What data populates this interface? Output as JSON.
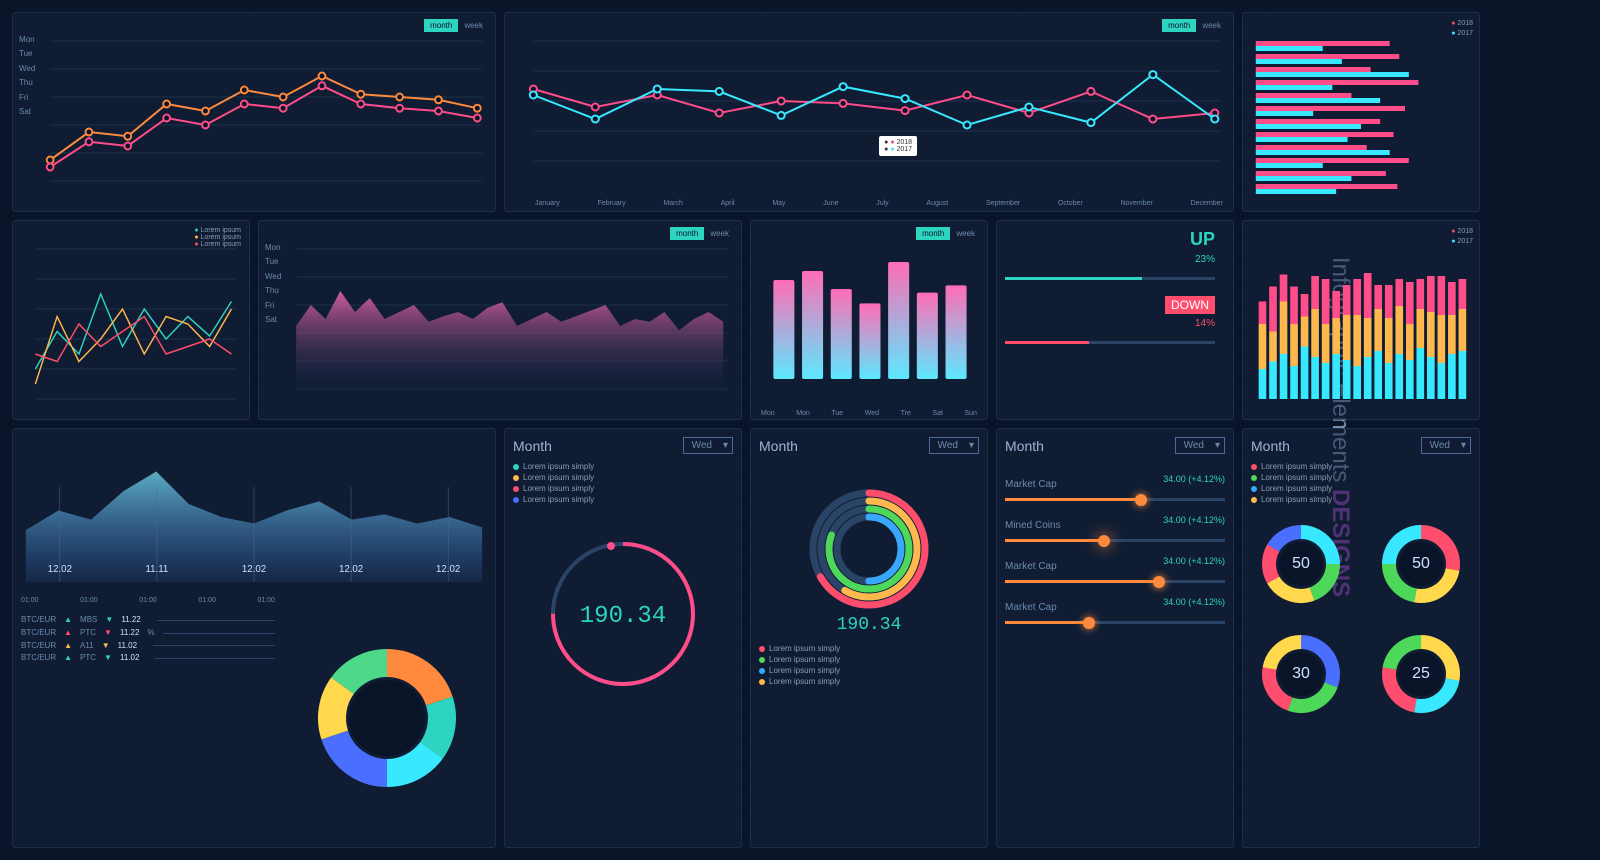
{
  "sidebar": {
    "title1": "Infographic Elements ",
    "title2": "DESIGNS"
  },
  "toggle": {
    "active": "month",
    "inactive": "week"
  },
  "days": [
    "Mon",
    "Tue",
    "Wed",
    "Thu",
    "Fri",
    "Sat"
  ],
  "days_short": [
    "Mon",
    "Tue",
    "Wed",
    "Tre",
    "Sat",
    "Sun"
  ],
  "months_full": [
    "January",
    "February",
    "March",
    "April",
    "May",
    "June",
    "July",
    "August",
    "September",
    "October",
    "November",
    "December"
  ],
  "chart1": {
    "series_a": {
      "color": "#ff8a3d",
      "points": [
        15,
        35,
        32,
        55,
        50,
        65,
        60,
        75,
        62,
        60,
        58,
        52
      ]
    },
    "series_b": {
      "color": "#ff4d8a",
      "points": [
        10,
        28,
        25,
        45,
        40,
        55,
        52,
        68,
        55,
        52,
        50,
        45
      ]
    }
  },
  "chart2": {
    "series_a": {
      "color": "#ff4d8a",
      "points": [
        60,
        45,
        55,
        40,
        50,
        48,
        42,
        55,
        40,
        58,
        35,
        40
      ]
    },
    "series_b": {
      "color": "#38e8ff",
      "points": [
        55,
        35,
        60,
        58,
        38,
        62,
        52,
        30,
        45,
        32,
        72,
        35
      ]
    },
    "legend": {
      "2018": "#ff4d6d",
      "2017": "#38e8ff"
    }
  },
  "chart3_bars": {
    "legend": {
      "2018": "#ff4d6d",
      "2017": "#38e8ff"
    },
    "data": [
      [
        70,
        35
      ],
      [
        75,
        45
      ],
      [
        60,
        80
      ],
      [
        85,
        40
      ],
      [
        50,
        65
      ],
      [
        78,
        30
      ],
      [
        65,
        55
      ],
      [
        72,
        48
      ],
      [
        58,
        70
      ],
      [
        80,
        35
      ],
      [
        68,
        50
      ],
      [
        74,
        42
      ]
    ],
    "colors": [
      "#ff4d8a",
      "#38e8ff"
    ]
  },
  "chart4_multi": {
    "legend": [
      {
        "c": "#2dd4bf",
        "t": "Lorem ipsum"
      },
      {
        "c": "#ffb84d",
        "t": "Lorem ipsum"
      },
      {
        "c": "#ff4d6d",
        "t": "Lorem ipsum"
      }
    ],
    "lines": [
      {
        "c": "#2dd4bf",
        "p": [
          20,
          45,
          30,
          70,
          35,
          60,
          40,
          55,
          42,
          65
        ]
      },
      {
        "c": "#ffb84d",
        "p": [
          10,
          55,
          25,
          40,
          60,
          30,
          55,
          50,
          35,
          60
        ]
      },
      {
        "c": "#ff4d6d",
        "p": [
          30,
          25,
          50,
          35,
          45,
          55,
          30,
          35,
          40,
          30
        ]
      }
    ]
  },
  "chart5_area": {
    "color_top": "#ff6db5",
    "color_bot": "#142848",
    "points": [
      45,
      60,
      50,
      70,
      55,
      65,
      50,
      55,
      60,
      48,
      52,
      55,
      50,
      58,
      62,
      45,
      50,
      55,
      48,
      52,
      56,
      60,
      45,
      50,
      48,
      55,
      42,
      50,
      55,
      48
    ],
    "legend": {
      "2018": "#ff4d6d",
      "2017": "#38e8ff"
    }
  },
  "chart6_bars": {
    "days": [
      "Mon",
      "Mon",
      "Tue",
      "Wed",
      "Tre",
      "Sat",
      "Sun"
    ],
    "values": [
      55,
      60,
      50,
      42,
      65,
      48,
      52
    ],
    "color_top": "#ff6db5",
    "color_bot": "#5de8ff"
  },
  "updown": {
    "up_label": "UP",
    "up_pct": "23%",
    "up_color": "#2dd4bf",
    "down_label": "DOWN",
    "down_pct": "14%",
    "down_color": "#ff4d6d"
  },
  "chart7_stacked": {
    "legend": {
      "2018": "#ff4d6d",
      "2017": "#38e8ff"
    },
    "bars": [
      [
        20,
        30,
        15
      ],
      [
        25,
        20,
        30
      ],
      [
        30,
        35,
        18
      ],
      [
        22,
        28,
        25
      ],
      [
        35,
        20,
        15
      ],
      [
        28,
        32,
        22
      ],
      [
        24,
        26,
        30
      ],
      [
        30,
        24,
        18
      ],
      [
        26,
        30,
        20
      ],
      [
        22,
        34,
        24
      ],
      [
        28,
        26,
        30
      ],
      [
        32,
        28,
        16
      ],
      [
        24,
        30,
        22
      ],
      [
        30,
        32,
        18
      ],
      [
        26,
        24,
        28
      ],
      [
        34,
        26,
        20
      ],
      [
        28,
        30,
        24
      ],
      [
        24,
        32,
        26
      ],
      [
        30,
        26,
        22
      ],
      [
        32,
        28,
        20
      ]
    ],
    "colors": [
      "#38e8ff",
      "#ffb84d",
      "#ff4d8a"
    ]
  },
  "chart8_wave": {
    "colors": [
      "#7de8ff",
      "#4a8fff"
    ],
    "points": [
      40,
      55,
      48,
      70,
      85,
      60,
      50,
      45,
      55,
      62,
      48,
      52,
      45,
      50,
      42
    ],
    "labels": [
      "12.02",
      "11.11",
      "12.02",
      "12.02",
      "12.02"
    ]
  },
  "chart8b_times": [
    "01:00",
    "01:00",
    "01:00",
    "01:00",
    "01:00"
  ],
  "ticker_table": [
    {
      "s": "MBS",
      "v": "11.22",
      "c": "#2dd4bf"
    },
    {
      "s": "PTC",
      "v": "11.22",
      "pct": "%",
      "c": "#ff4d6d"
    },
    {
      "s": "A11",
      "v": "11.02",
      "c": "#ffb84d"
    },
    {
      "s": "PTC",
      "v": "11.02",
      "c": "#2dd4bf"
    }
  ],
  "donut_multi": {
    "segments": [
      {
        "c": "#ff8a3d",
        "v": 20
      },
      {
        "c": "#2dd4bf",
        "v": 15
      },
      {
        "c": "#38e8ff",
        "v": 15
      },
      {
        "c": "#4a6fff",
        "v": 20
      },
      {
        "c": "#ffd84d",
        "v": 15
      },
      {
        "c": "#4dd88a",
        "v": 15
      }
    ]
  },
  "panel_month1": {
    "title": "Month",
    "sel": "Wed",
    "leg": [
      {
        "c": "#2dd4bf",
        "t": "Lorem ipsum simply"
      },
      {
        "c": "#ffb84d",
        "t": "Lorem ipsum simply"
      },
      {
        "c": "#ff4d6d",
        "t": "Lorem ipsum simply"
      },
      {
        "c": "#4a6fff",
        "t": "Lorem ipsum simply"
      }
    ],
    "ring_value": "190.34",
    "ring_color": "#2dd4bf"
  },
  "panel_month2": {
    "title": "Month",
    "sel": "Wed",
    "ring_value": "190.34",
    "arcs": [
      {
        "c": "#ff4d6d",
        "r": 56,
        "e": 240
      },
      {
        "c": "#ffb84d",
        "r": 48,
        "e": 210
      },
      {
        "c": "#4dd85a",
        "r": 40,
        "e": 290
      },
      {
        "c": "#38a8ff",
        "r": 32,
        "e": 180
      }
    ],
    "leg": [
      {
        "c": "#ff4d6d",
        "t": "Lorem ipsum simply"
      },
      {
        "c": "#4dd85a",
        "t": "Lorem ipsum simply"
      },
      {
        "c": "#38a8ff",
        "t": "Lorem ipsum simply"
      },
      {
        "c": "#ffb84d",
        "t": "Lorem ipsum simply"
      }
    ]
  },
  "panel_sliders": {
    "title": "Month",
    "sel": "Wed",
    "rows": [
      {
        "label": "Market Cap",
        "val": "34.00 (+4.12%)",
        "pct": 62,
        "c": "#ff8a3d"
      },
      {
        "label": "Mined Coins",
        "val": "34.00 (+4.12%)",
        "pct": 45,
        "c": "#ff8a3d",
        "glow": true
      },
      {
        "label": "Market Cap",
        "val": "34.00 (+4.12%)",
        "pct": 70,
        "c": "#ff8a3d"
      },
      {
        "label": "Market Cap",
        "val": "34.00 (+4.12%)",
        "pct": 38,
        "c": "#ff8a3d"
      }
    ]
  },
  "panel_donuts4": {
    "title": "Month",
    "sel": "Wed",
    "leg": [
      {
        "c": "#ff4d6d",
        "t": "Lorem ipsum simply"
      },
      {
        "c": "#4dd85a",
        "t": "Lorem ipsum simply"
      },
      {
        "c": "#38a8ff",
        "t": "Lorem ipsum simply"
      },
      {
        "c": "#ffb84d",
        "t": "Lorem ipsum simply"
      }
    ],
    "donuts": [
      {
        "v": "50",
        "segs": [
          {
            "c": "#38e8ff",
            "a": 90
          },
          {
            "c": "#4dd85a",
            "a": 70
          },
          {
            "c": "#ffd84d",
            "a": 80
          },
          {
            "c": "#ff4d6d",
            "a": 60
          },
          {
            "c": "#4a6fff",
            "a": 60
          }
        ]
      },
      {
        "v": "50",
        "segs": [
          {
            "c": "#ff4d6d",
            "a": 100
          },
          {
            "c": "#ffd84d",
            "a": 90
          },
          {
            "c": "#4dd85a",
            "a": 80
          },
          {
            "c": "#38e8ff",
            "a": 90
          }
        ]
      },
      {
        "v": "30",
        "segs": [
          {
            "c": "#4a6fff",
            "a": 110
          },
          {
            "c": "#4dd85a",
            "a": 90
          },
          {
            "c": "#ff4d6d",
            "a": 80
          },
          {
            "c": "#ffd84d",
            "a": 80
          }
        ]
      },
      {
        "v": "25",
        "segs": [
          {
            "c": "#ffd84d",
            "a": 100
          },
          {
            "c": "#38e8ff",
            "a": 90
          },
          {
            "c": "#ff4d6d",
            "a": 90
          },
          {
            "c": "#4dd85a",
            "a": 80
          }
        ]
      }
    ]
  }
}
